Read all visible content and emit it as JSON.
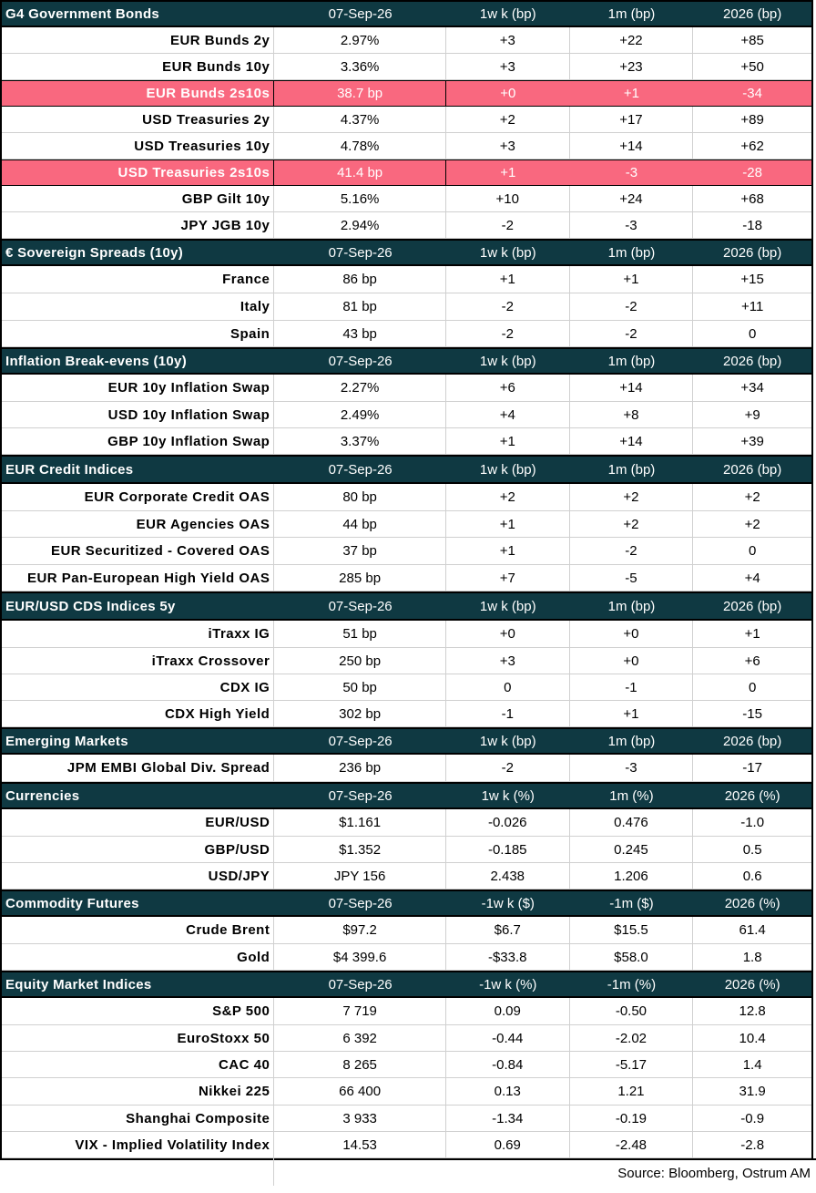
{
  "columns_default": [
    "07-Sep-26",
    "1w k (bp)",
    "1m (bp)",
    "2026 (bp)"
  ],
  "sections": [
    {
      "title": "G4 Government Bonds",
      "headers": [
        "07-Sep-26",
        "1w k (bp)",
        "1m (bp)",
        "2026 (bp)"
      ],
      "rows": [
        {
          "label": "EUR Bunds  2y",
          "v": [
            "2.97%",
            "+3",
            "+22",
            "+85"
          ]
        },
        {
          "label": "EUR Bunds  10y",
          "v": [
            "3.36%",
            "+3",
            "+23",
            "+50"
          ]
        },
        {
          "label": "EUR Bunds  2s10s",
          "v": [
            "38.7 bp",
            "+0",
            "+1",
            "-34"
          ],
          "highlight": true
        },
        {
          "label": "USD Treasuries  2y",
          "v": [
            "4.37%",
            "+2",
            "+17",
            "+89"
          ]
        },
        {
          "label": "USD Treasuries  10y",
          "v": [
            "4.78%",
            "+3",
            "+14",
            "+62"
          ]
        },
        {
          "label": "USD Treasuries  2s10s",
          "v": [
            "41.4 bp",
            "+1",
            "-3",
            "-28"
          ],
          "highlight": true
        },
        {
          "label": "GBP Gilt  10y",
          "v": [
            "5.16%",
            "+10",
            "+24",
            "+68"
          ]
        },
        {
          "label": "JPY JGB  10y",
          "v": [
            "2.94%",
            "-2",
            "-3",
            "-18"
          ]
        }
      ]
    },
    {
      "title": "€ Sovereign Spreads (10y)",
      "headers": [
        "07-Sep-26",
        "1w k (bp)",
        "1m (bp)",
        "2026 (bp)"
      ],
      "rows": [
        {
          "label": "France",
          "v": [
            "86 bp",
            "+1",
            "+1",
            "+15"
          ]
        },
        {
          "label": "Italy",
          "v": [
            "81 bp",
            "-2",
            "-2",
            "+11"
          ]
        },
        {
          "label": "Spain",
          "v": [
            "43 bp",
            "-2",
            "-2",
            "0"
          ]
        }
      ]
    },
    {
      "title": "Inflation Break-evens (10y)",
      "headers": [
        "07-Sep-26",
        "1w k (bp)",
        "1m (bp)",
        "2026 (bp)"
      ],
      "rows": [
        {
          "label": "EUR 10y Inflation Swap",
          "v": [
            "2.27%",
            "+6",
            "+14",
            "+34"
          ]
        },
        {
          "label": "USD 10y Inflation Swap",
          "v": [
            "2.49%",
            "+4",
            "+8",
            "+9"
          ]
        },
        {
          "label": "GBP 10y Inflation Swap",
          "v": [
            "3.37%",
            "+1",
            "+14",
            "+39"
          ]
        }
      ]
    },
    {
      "title": "EUR Credit Indices",
      "headers": [
        "07-Sep-26",
        "1w k (bp)",
        "1m (bp)",
        "2026 (bp)"
      ],
      "rows": [
        {
          "label": "EUR Corporate Credit OAS",
          "v": [
            "80 bp",
            "+2",
            "+2",
            "+2"
          ]
        },
        {
          "label": "EUR Agencies OAS",
          "v": [
            "44 bp",
            "+1",
            "+2",
            "+2"
          ]
        },
        {
          "label": "EUR Securitized - Covered OAS",
          "v": [
            "37 bp",
            "+1",
            "-2",
            "0"
          ]
        },
        {
          "label": "EUR Pan-European High Yield OAS",
          "v": [
            "285 bp",
            "+7",
            "-5",
            "+4"
          ]
        }
      ]
    },
    {
      "title": "EUR/USD CDS Indices 5y",
      "headers": [
        "07-Sep-26",
        "1w k (bp)",
        "1m (bp)",
        "2026 (bp)"
      ],
      "rows": [
        {
          "label": "iTraxx IG",
          "v": [
            "51 bp",
            "+0",
            "+0",
            "+1"
          ]
        },
        {
          "label": "iTraxx Crossover",
          "v": [
            "250 bp",
            "+3",
            "+0",
            "+6"
          ]
        },
        {
          "label": "CDX IG",
          "v": [
            "50 bp",
            "0",
            "-1",
            "0"
          ]
        },
        {
          "label": "CDX High Yield",
          "v": [
            "302 bp",
            "-1",
            "+1",
            "-15"
          ]
        }
      ]
    },
    {
      "title": "Emerging Markets",
      "headers": [
        "07-Sep-26",
        "1w k (bp)",
        "1m (bp)",
        "2026 (bp)"
      ],
      "rows": [
        {
          "label": "JPM EMBI Global Div. Spread",
          "v": [
            "236 bp",
            "-2",
            "-3",
            "-17"
          ]
        }
      ]
    },
    {
      "title": "Currencies",
      "headers": [
        "07-Sep-26",
        "1w k (%)",
        "1m (%)",
        "2026 (%)"
      ],
      "rows": [
        {
          "label": "EUR/USD",
          "v": [
            "$1.161",
            "-0.026",
            "0.476",
            "-1.0"
          ]
        },
        {
          "label": "GBP/USD",
          "v": [
            "$1.352",
            "-0.185",
            "0.245",
            "0.5"
          ]
        },
        {
          "label": "USD/JPY",
          "v": [
            "JPY 156",
            "2.438",
            "1.206",
            "0.6"
          ]
        }
      ]
    },
    {
      "title": "Commodity Futures",
      "headers": [
        "07-Sep-26",
        "-1w k ($)",
        "-1m ($)",
        "2026 (%)"
      ],
      "rows": [
        {
          "label": "Crude Brent",
          "v": [
            "$97.2",
            "$6.7",
            "$15.5",
            "61.4"
          ]
        },
        {
          "label": "Gold",
          "v": [
            "$4 399.6",
            "-$33.8",
            "$58.0",
            "1.8"
          ]
        }
      ]
    },
    {
      "title": "Equity Market Indices",
      "headers": [
        "07-Sep-26",
        "-1w k (%)",
        "-1m (%)",
        "2026 (%)"
      ],
      "rows": [
        {
          "label": "S&P 500",
          "v": [
            "7 719",
            "0.09",
            "-0.50",
            "12.8"
          ]
        },
        {
          "label": "EuroStoxx 50",
          "v": [
            "6 392",
            "-0.44",
            "-2.02",
            "10.4"
          ]
        },
        {
          "label": "CAC 40",
          "v": [
            "8 265",
            "-0.84",
            "-5.17",
            "1.4"
          ]
        },
        {
          "label": "Nikkei 225",
          "v": [
            "66 400",
            "0.13",
            "1.21",
            "31.9"
          ]
        },
        {
          "label": "Shanghai Composite",
          "v": [
            "3 933",
            "-1.34",
            "-0.19",
            "-0.9"
          ]
        },
        {
          "label": "VIX - Implied Volatility Index",
          "v": [
            "14.53",
            "0.69",
            "-2.48",
            "-2.8"
          ]
        }
      ]
    }
  ],
  "source": "Source: Bloomberg, Ostrum AM",
  "colors": {
    "header_bg": "#0f3942",
    "highlight_bg": "#f9687f"
  }
}
